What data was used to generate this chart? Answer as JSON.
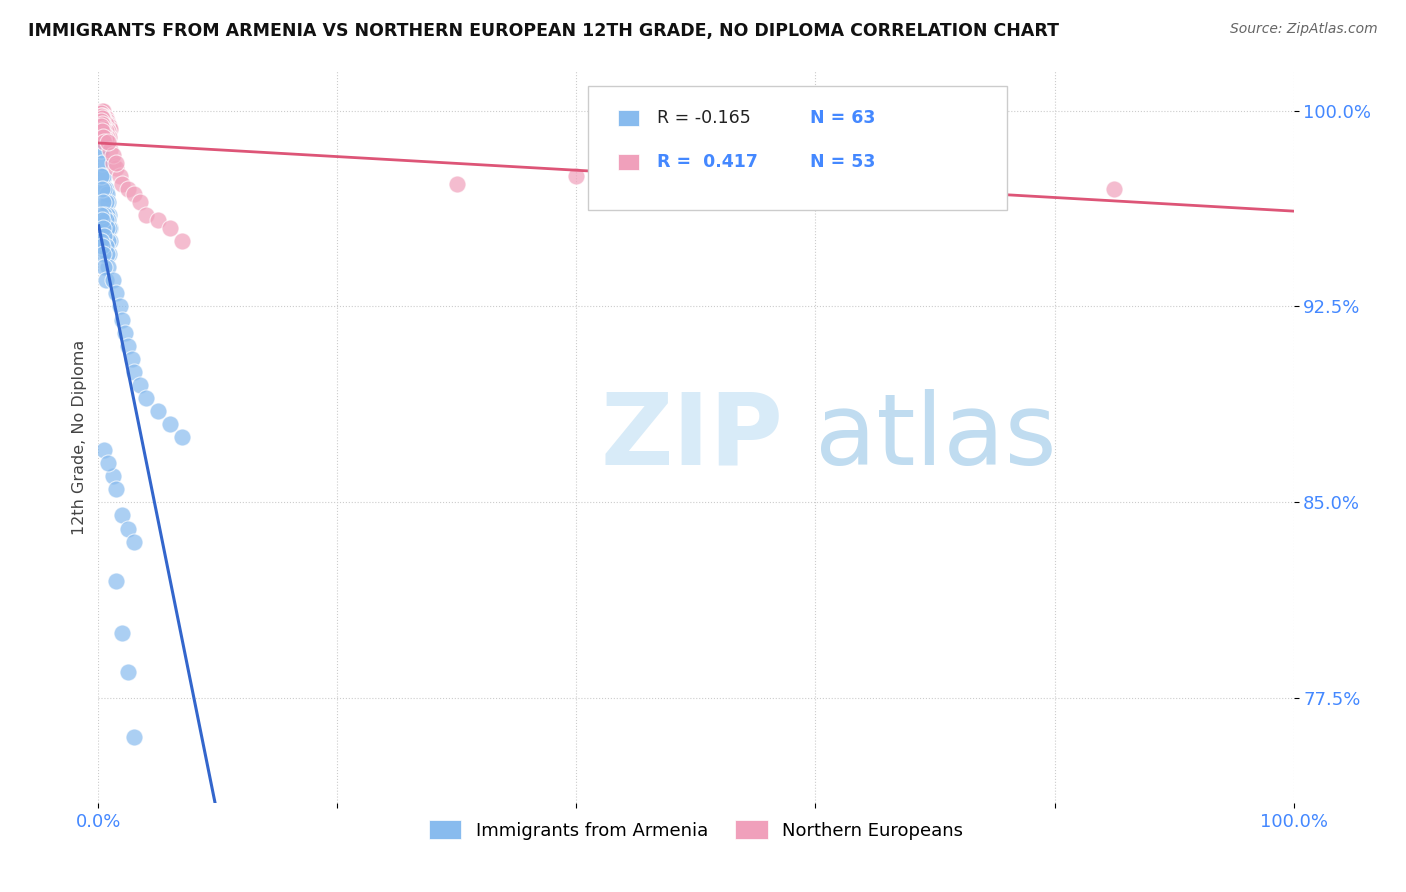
{
  "title": "IMMIGRANTS FROM ARMENIA VS NORTHERN EUROPEAN 12TH GRADE, NO DIPLOMA CORRELATION CHART",
  "source": "Source: ZipAtlas.com",
  "ylabel": "12th Grade, No Diploma",
  "legend_r_armenia": "-0.165",
  "legend_n_armenia": "63",
  "legend_r_northern": "0.417",
  "legend_n_northern": "53",
  "color_armenia": "#88BBEE",
  "color_northern": "#F0A0BB",
  "color_trendline_armenia": "#3366CC",
  "color_trendline_northern": "#DD5577",
  "color_trendline_dashed": "#99CCEE",
  "watermark_zip": "#C8DFF0",
  "watermark_atlas": "#B0D0E8",
  "xlim": [
    0.0,
    1.0
  ],
  "ylim": [
    0.735,
    1.015
  ],
  "yticks": [
    0.775,
    0.85,
    0.925,
    1.0
  ],
  "ytick_labels": [
    "77.5%",
    "85.0%",
    "92.5%",
    "100.0%"
  ]
}
